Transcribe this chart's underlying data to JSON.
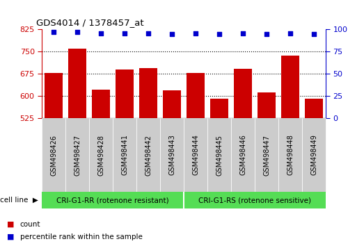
{
  "title": "GDS4014 / 1378457_at",
  "categories": [
    "GSM498426",
    "GSM498427",
    "GSM498428",
    "GSM498441",
    "GSM498442",
    "GSM498443",
    "GSM498444",
    "GSM498445",
    "GSM498446",
    "GSM498447",
    "GSM498448",
    "GSM498449"
  ],
  "bar_values": [
    678,
    760,
    622,
    690,
    695,
    618,
    678,
    590,
    692,
    612,
    737,
    591
  ],
  "percentile_values": [
    97,
    97,
    96,
    96,
    96,
    95,
    96,
    95,
    96,
    95,
    96,
    95
  ],
  "bar_color": "#cc0000",
  "dot_color": "#0000cc",
  "ylim_left": [
    525,
    825
  ],
  "ylim_right": [
    0,
    100
  ],
  "yticks_left": [
    525,
    600,
    675,
    750,
    825
  ],
  "yticks_right": [
    0,
    25,
    50,
    75,
    100
  ],
  "grid_values": [
    600,
    675,
    750
  ],
  "group1_label": "CRI-G1-RR (rotenone resistant)",
  "group2_label": "CRI-G1-RS (rotenone sensitive)",
  "group1_count": 6,
  "group2_count": 6,
  "cell_line_label": "cell line",
  "legend_count_label": "count",
  "legend_pct_label": "percentile rank within the sample",
  "background_color": "#ffffff",
  "plot_bg_color": "#ffffff",
  "tick_bg_color": "#cccccc",
  "group_bg_color": "#55dd55",
  "bar_width": 0.75,
  "left_ylabel_color": "#cc0000",
  "right_ylabel_color": "#0000cc"
}
